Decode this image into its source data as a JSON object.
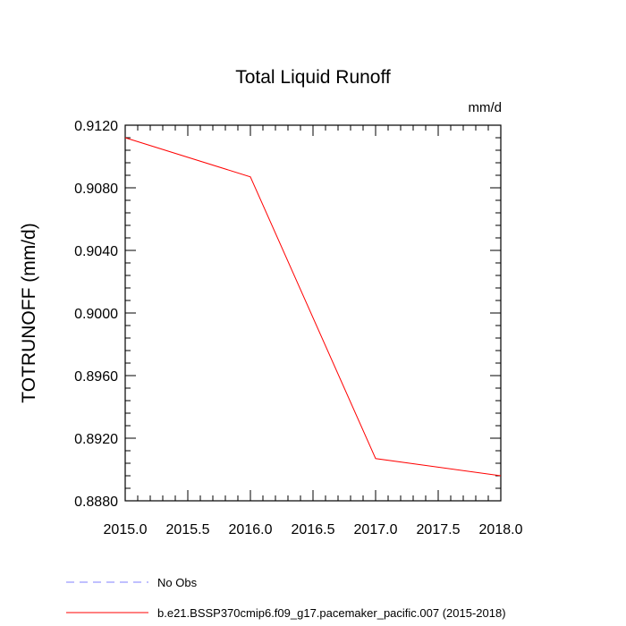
{
  "chart_data": {
    "type": "line",
    "title": "Total Liquid Runoff",
    "units_label": "mm/d",
    "xlabel": "",
    "ylabel": "TOTRUNOFF  (mm/d)",
    "xlim": [
      2015.0,
      2018.0
    ],
    "ylim": [
      0.888,
      0.912
    ],
    "xticks": [
      "2015.0",
      "2015.5",
      "2016.0",
      "2016.5",
      "2017.0",
      "2017.5",
      "2018.0"
    ],
    "yticks": [
      "0.8880",
      "0.8920",
      "0.8960",
      "0.9000",
      "0.9040",
      "0.9080",
      "0.9120"
    ],
    "grid": false,
    "x": [
      2015.0,
      2016.0,
      2017.0,
      2018.0
    ],
    "series": [
      {
        "name": "b.e21.BSSP370cmip6.f09_g17.pacemaker_pacific.007 (2015-2018)",
        "color": "#ff0000",
        "values": [
          0.9112,
          0.9087,
          0.8907,
          0.8896
        ]
      }
    ],
    "legend": [
      {
        "label": "No Obs",
        "color": "#8080ff",
        "style": "dashed"
      },
      {
        "label": "b.e21.BSSP370cmip6.f09_g17.pacemaker_pacific.007 (2015-2018)",
        "color": "#ff0000",
        "style": "solid"
      }
    ],
    "legend_position": "bottom-left"
  }
}
